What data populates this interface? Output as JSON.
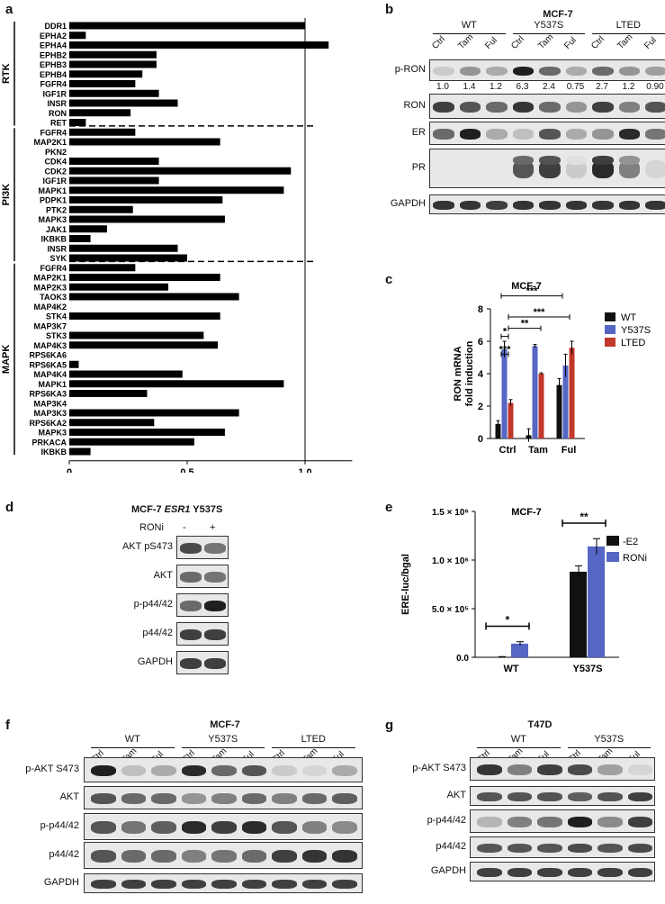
{
  "panels": {
    "a": {
      "label": "a"
    },
    "b": {
      "label": "b",
      "title": "MCF-7"
    },
    "c": {
      "label": "c"
    },
    "d": {
      "label": "d"
    },
    "e": {
      "label": "e"
    },
    "f": {
      "label": "f",
      "title": "MCF-7"
    },
    "g": {
      "label": "g",
      "title": "T47D"
    }
  },
  "chart_data": [
    {
      "type": "bar",
      "orientation": "horizontal",
      "panel": "a",
      "xlabel": "Y537S Tam/Y537S",
      "xlim": [
        0,
        1.2
      ],
      "xticks": [
        "0",
        "0.5",
        "1.0"
      ],
      "reference_line": 1.0,
      "groups": [
        {
          "name": "RTK",
          "categories": [
            "DDR1",
            "EPHA2",
            "EPHA4",
            "EPHB2",
            "EPHB3",
            "EPHB4",
            "FGFR4",
            "IGF1R",
            "INSR",
            "RON",
            "RET"
          ],
          "values": [
            1.0,
            0.07,
            1.1,
            0.37,
            0.37,
            0.31,
            0.28,
            0.38,
            0.46,
            0.26,
            0.07
          ]
        },
        {
          "name": "PI3K",
          "categories": [
            "FGFR4",
            "MAP2K1",
            "PKN2",
            "CDK4",
            "CDK2",
            "IGF1R",
            "MAPK1",
            "PDPK1",
            "PTK2",
            "MAPK3",
            "JAK1",
            "IKBKB",
            "INSR",
            "SYK"
          ],
          "values": [
            0.28,
            0.64,
            0.0,
            0.38,
            0.94,
            0.38,
            0.91,
            0.65,
            0.27,
            0.66,
            0.16,
            0.09,
            0.46,
            0.5
          ]
        },
        {
          "name": "MAPK",
          "categories": [
            "FGFR4",
            "MAP2K1",
            "MAP2K3",
            "TAOK3",
            "MAP4K2",
            "STK4",
            "MAP3K7",
            "STK3",
            "MAP4K3",
            "RPS6KA6",
            "RPS6KA5",
            "MAP4K4",
            "MAPK1",
            "RPS6KA3",
            "MAP3K4",
            "MAP3K3",
            "RPS6KA2",
            "MAPK3",
            "PRKACA",
            "IKBKB"
          ],
          "values": [
            0.28,
            0.64,
            0.42,
            0.72,
            0.0,
            0.64,
            0.0,
            0.57,
            0.63,
            0.0,
            0.04,
            0.48,
            0.91,
            0.33,
            0.0,
            0.72,
            0.36,
            0.66,
            0.53,
            0.09
          ]
        }
      ]
    },
    {
      "type": "bar",
      "panel": "c",
      "title": "MCF-7",
      "ylabel": "RON mRNA fold induction",
      "ylim": [
        0,
        8
      ],
      "yticks": [
        "0",
        "2",
        "4",
        "6",
        "8"
      ],
      "categories": [
        "Ctrl",
        "Tam",
        "Ful"
      ],
      "series": [
        {
          "name": "WT",
          "color": "#111111",
          "values": [
            0.9,
            0.2,
            3.3
          ],
          "errors": [
            0.2,
            0.4,
            0.4
          ]
        },
        {
          "name": "Y537S",
          "color": "#5566c4",
          "values": [
            5.5,
            5.7,
            4.5
          ],
          "errors": [
            0.5,
            0.1,
            0.7
          ]
        },
        {
          "name": "LTED",
          "color": "#c0392b",
          "values": [
            2.2,
            4.0,
            5.6
          ],
          "errors": [
            0.2,
            0.05,
            0.4
          ]
        }
      ],
      "significance": [
        "***",
        "*",
        "***",
        "***",
        "**"
      ]
    },
    {
      "type": "bar",
      "panel": "e",
      "title": "MCF-7",
      "ylabel": "ERE-luc/bgal",
      "ylim": [
        0,
        1500000
      ],
      "yticks": [
        "0.0",
        "5.0 × 10⁵",
        "1.0 × 10⁶",
        "1.5 × 10⁶"
      ],
      "categories": [
        "WT",
        "Y537S"
      ],
      "series": [
        {
          "name": "-E2",
          "color": "#111111",
          "values": [
            5000,
            880000
          ],
          "errors": [
            2000,
            60000
          ]
        },
        {
          "name": "RONi",
          "color": "#5566c4",
          "values": [
            140000,
            1140000
          ],
          "errors": [
            20000,
            80000
          ]
        }
      ],
      "significance": [
        "*",
        "**"
      ]
    }
  ],
  "blot_b": {
    "groups": [
      "WT",
      "Y537S",
      "LTED"
    ],
    "lanes": [
      "Ctrl",
      "Tam",
      "Ful",
      "Ctrl",
      "Tam",
      "Ful",
      "Ctrl",
      "Tam",
      "Ful"
    ],
    "rows": [
      "p-RON",
      "RON",
      "ER",
      "PR",
      "GAPDH"
    ],
    "quant": [
      "1.0",
      "1.4",
      "1.2",
      "6.3",
      "2.4",
      "0.75",
      "2.7",
      "1.2",
      "0.90"
    ],
    "intensity": {
      "p-RON": [
        0.15,
        0.4,
        0.3,
        0.95,
        0.6,
        0.3,
        0.6,
        0.4,
        0.35
      ],
      "RON": [
        0.8,
        0.7,
        0.6,
        0.85,
        0.6,
        0.4,
        0.8,
        0.5,
        0.7
      ],
      "ER": [
        0.6,
        0.95,
        0.3,
        0.2,
        0.7,
        0.3,
        0.4,
        0.9,
        0.55
      ],
      "PR": [
        0,
        0,
        0,
        0.7,
        0.8,
        0.15,
        0.9,
        0.5,
        0.1
      ],
      "GAPDH": [
        0.85,
        0.85,
        0.8,
        0.85,
        0.85,
        0.85,
        0.85,
        0.85,
        0.85
      ]
    }
  },
  "blot_d": {
    "title": "MCF-7 ESR1 Y537S",
    "title_parts": [
      "MCF-7 ",
      "ESR1",
      " Y537S"
    ],
    "treatment": "RONi",
    "lanes": [
      "-",
      "+"
    ],
    "rows": [
      "AKT pS473",
      "AKT",
      "p-p44/42",
      "p44/42",
      "GAPDH"
    ],
    "intensity": {
      "AKT pS473": [
        0.75,
        0.55
      ],
      "AKT": [
        0.6,
        0.55
      ],
      "p-p44/42": [
        0.6,
        0.95
      ],
      "p44/42": [
        0.8,
        0.8
      ],
      "GAPDH": [
        0.8,
        0.8
      ]
    }
  },
  "blot_f": {
    "groups": [
      "WT",
      "Y537S",
      "LTED"
    ],
    "lanes": [
      "Ctrl",
      "Tam",
      "Ful",
      "Ctrl",
      "Tam",
      "Ful",
      "Ctrl",
      "Tam",
      "Ful"
    ],
    "rows": [
      "p-AKT S473",
      "AKT",
      "p-p44/42",
      "p44/42",
      "GAPDH"
    ],
    "intensity": {
      "p-AKT S473": [
        0.95,
        0.2,
        0.3,
        0.9,
        0.6,
        0.7,
        0.15,
        0.1,
        0.3
      ],
      "AKT": [
        0.7,
        0.6,
        0.6,
        0.4,
        0.5,
        0.6,
        0.5,
        0.6,
        0.65
      ],
      "p-p44/42": [
        0.7,
        0.55,
        0.65,
        0.9,
        0.8,
        0.9,
        0.7,
        0.5,
        0.45
      ],
      "p44/42": [
        0.7,
        0.6,
        0.6,
        0.5,
        0.55,
        0.6,
        0.8,
        0.85,
        0.85
      ],
      "GAPDH": [
        0.8,
        0.8,
        0.8,
        0.8,
        0.8,
        0.8,
        0.8,
        0.8,
        0.8
      ]
    }
  },
  "blot_g": {
    "groups": [
      "WT",
      "Y537S"
    ],
    "lanes": [
      "Ctrl",
      "Tam",
      "Ful",
      "Ctrl",
      "Tam",
      "Ful"
    ],
    "rows": [
      "p-AKT S473",
      "AKT",
      "p-p44/42",
      "p44/42",
      "GAPDH"
    ],
    "intensity": {
      "p-AKT S473": [
        0.85,
        0.5,
        0.8,
        0.75,
        0.35,
        0.1
      ],
      "AKT": [
        0.7,
        0.7,
        0.7,
        0.65,
        0.7,
        0.8
      ],
      "p-p44/42": [
        0.25,
        0.5,
        0.55,
        0.95,
        0.45,
        0.8
      ],
      "p44/42": [
        0.7,
        0.7,
        0.7,
        0.75,
        0.7,
        0.75
      ],
      "GAPDH": [
        0.8,
        0.8,
        0.8,
        0.8,
        0.8,
        0.8
      ]
    }
  }
}
